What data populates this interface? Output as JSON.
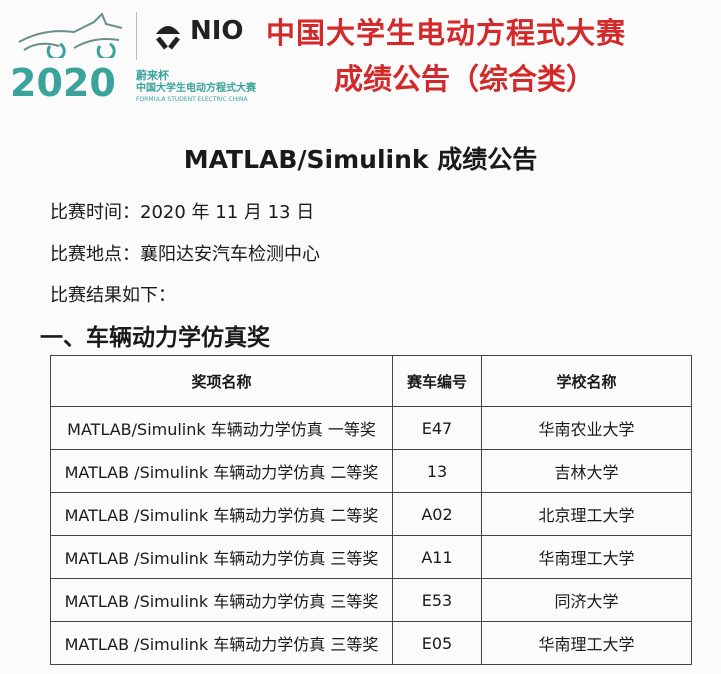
{
  "header": {
    "logo": {
      "brand": "NIO",
      "year": "2020",
      "cup": "蔚来杯",
      "competition": "中国大学生电动方程式大赛",
      "english": "FORMULA STUDENT ELECTRIC CHINA",
      "accent": "#3aa39b"
    },
    "title_line1": "中国大学生电动方程式大赛",
    "title_line2": "成绩公告（综合类）",
    "title_color": "#d22a2a"
  },
  "doc": {
    "title": "MATLAB/Simulink 成绩公告",
    "date": "比赛时间：2020 年 11 月 13 日",
    "location": "比赛地点：襄阳达安汽车检测中心",
    "results_intro": "比赛结果如下：",
    "section": "一、车辆动力学仿真奖"
  },
  "table": {
    "headers": [
      "奖项名称",
      "赛车编号",
      "学校名称"
    ],
    "rows": [
      [
        "MATLAB/Simulink 车辆动力学仿真  一等奖",
        "E47",
        "华南农业大学"
      ],
      [
        "MATLAB /Simulink 车辆动力学仿真 二等奖",
        "13",
        "吉林大学"
      ],
      [
        "MATLAB /Simulink 车辆动力学仿真 二等奖",
        "A02",
        "北京理工大学"
      ],
      [
        "MATLAB /Simulink 车辆动力学仿真 三等奖",
        "A11",
        "华南理工大学"
      ],
      [
        "MATLAB /Simulink 车辆动力学仿真 三等奖",
        "E53",
        "同济大学"
      ],
      [
        "MATLAB /Simulink 车辆动力学仿真 三等奖",
        "E05",
        "华南理工大学"
      ]
    ]
  }
}
